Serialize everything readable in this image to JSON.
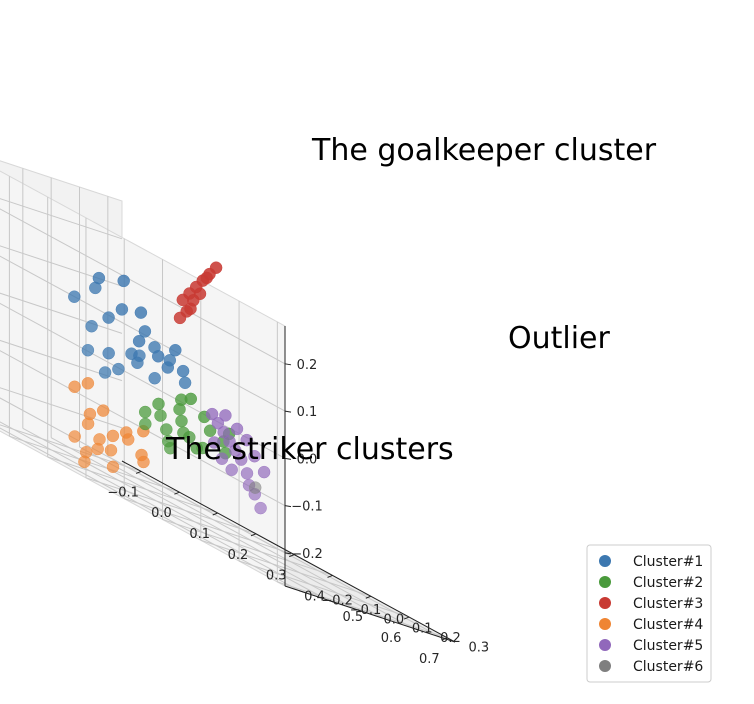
{
  "chart_data": {
    "type": "scatter",
    "projection": "3d",
    "title": "",
    "xlabel": "",
    "ylabel": "",
    "zlabel": "",
    "grid": true,
    "xlim": [
      -0.15,
      0.72
    ],
    "ylim": [
      -0.25,
      0.35
    ],
    "zlim": [
      -0.27,
      0.28
    ],
    "x_ticks": [
      "−0.1",
      "0.0",
      "0.1",
      "0.2",
      "0.3",
      "0.4",
      "0.5",
      "0.6",
      "0.7"
    ],
    "y_ticks": [
      "−0.2",
      "−0.1",
      "0.0",
      "0.1",
      "0.2",
      "0.3"
    ],
    "z_ticks": [
      "−0.2",
      "−0.1",
      "0.0",
      "0.1",
      "0.2"
    ],
    "legend_position": "bottom-right",
    "annotations": [
      "The goalkeeper cluster",
      "Outlier",
      "The striker clusters"
    ],
    "series": [
      {
        "name": "Cluster#1",
        "color": "#3d78b0",
        "points": [
          [
            0.0,
            0.1,
            0.05
          ],
          [
            0.02,
            0.12,
            0.08
          ],
          [
            0.05,
            0.14,
            0.03
          ],
          [
            -0.02,
            0.08,
            0.1
          ],
          [
            0.08,
            0.12,
            0.06
          ],
          [
            0.1,
            0.14,
            0.02
          ],
          [
            0.06,
            0.1,
            0.0
          ],
          [
            0.12,
            0.1,
            0.04
          ],
          [
            0.03,
            0.06,
            -0.02
          ],
          [
            0.0,
            0.04,
            0.02
          ],
          [
            0.14,
            0.12,
            0.01
          ],
          [
            0.16,
            0.1,
            0.03
          ],
          [
            0.09,
            0.08,
            -0.01
          ],
          [
            0.11,
            0.06,
            0.01
          ],
          [
            -0.04,
            0.12,
            0.12
          ],
          [
            0.04,
            0.16,
            0.09
          ],
          [
            0.13,
            0.16,
            0.05
          ],
          [
            0.07,
            0.04,
            -0.04
          ],
          [
            0.02,
            0.0,
            -0.03
          ],
          [
            0.18,
            0.12,
            0.02
          ],
          [
            0.15,
            0.06,
            -0.02
          ],
          [
            -0.06,
            0.06,
            0.06
          ],
          [
            0.05,
            0.02,
            -0.06
          ],
          [
            0.2,
            0.1,
            0.0
          ],
          [
            0.01,
            0.14,
            0.14
          ]
        ]
      },
      {
        "name": "Cluster#2",
        "color": "#4a9a3c",
        "points": [
          [
            0.2,
            0.08,
            -0.06
          ],
          [
            0.22,
            0.06,
            -0.08
          ],
          [
            0.25,
            0.1,
            -0.05
          ],
          [
            0.18,
            0.04,
            -0.09
          ],
          [
            0.24,
            0.04,
            -0.1
          ],
          [
            0.28,
            0.08,
            -0.07
          ],
          [
            0.21,
            0.02,
            -0.11
          ],
          [
            0.26,
            0.06,
            -0.12
          ],
          [
            0.3,
            0.1,
            -0.08
          ],
          [
            0.19,
            0.1,
            -0.04
          ],
          [
            0.23,
            0.0,
            -0.13
          ],
          [
            0.27,
            0.02,
            -0.1
          ],
          [
            0.16,
            0.06,
            -0.07
          ],
          [
            0.29,
            0.04,
            -0.11
          ],
          [
            0.17,
            0.0,
            -0.12
          ],
          [
            0.32,
            0.08,
            -0.1
          ],
          [
            0.2,
            0.12,
            -0.03
          ],
          [
            0.25,
            -0.02,
            -0.14
          ],
          [
            0.14,
            0.04,
            -0.1
          ],
          [
            0.3,
            0.12,
            -0.06
          ]
        ]
      },
      {
        "name": "Cluster#3",
        "color": "#c83a33",
        "points": [
          [
            0.12,
            0.2,
            0.16
          ],
          [
            0.13,
            0.21,
            0.18
          ],
          [
            0.14,
            0.22,
            0.2
          ],
          [
            0.15,
            0.23,
            0.22
          ],
          [
            0.16,
            0.24,
            0.24
          ],
          [
            0.13,
            0.2,
            0.14
          ],
          [
            0.14,
            0.21,
            0.17
          ],
          [
            0.15,
            0.22,
            0.19
          ],
          [
            0.17,
            0.25,
            0.26
          ],
          [
            0.12,
            0.19,
            0.12
          ],
          [
            0.16,
            0.23,
            0.23
          ],
          [
            0.14,
            0.2,
            0.15
          ]
        ]
      },
      {
        "name": "Cluster#4",
        "color": "#ef8533",
        "points": [
          [
            0.0,
            -0.02,
            -0.12
          ],
          [
            0.04,
            -0.02,
            -0.16
          ],
          [
            0.06,
            0.0,
            -0.14
          ],
          [
            0.08,
            -0.04,
            -0.2
          ],
          [
            0.1,
            -0.02,
            -0.18
          ],
          [
            0.12,
            0.0,
            -0.16
          ],
          [
            0.06,
            -0.06,
            -0.24
          ],
          [
            0.09,
            -0.06,
            -0.22
          ],
          [
            0.14,
            -0.02,
            -0.17
          ],
          [
            0.02,
            0.0,
            -0.1
          ],
          [
            0.07,
            -0.08,
            -0.26
          ],
          [
            0.11,
            -0.04,
            -0.21
          ],
          [
            0.16,
            0.0,
            -0.19
          ],
          [
            0.05,
            -0.04,
            -0.18
          ],
          [
            0.13,
            -0.06,
            -0.24
          ],
          [
            0.18,
            -0.02,
            -0.2
          ],
          [
            0.03,
            -0.06,
            -0.22
          ],
          [
            0.15,
            0.02,
            -0.14
          ]
        ]
      },
      {
        "name": "Cluster#5",
        "color": "#9168bb",
        "points": [
          [
            0.3,
            0.06,
            -0.03
          ],
          [
            0.33,
            0.04,
            -0.04
          ],
          [
            0.36,
            0.02,
            -0.05
          ],
          [
            0.39,
            0.0,
            -0.06
          ],
          [
            0.42,
            -0.02,
            -0.07
          ],
          [
            0.45,
            -0.04,
            -0.08
          ],
          [
            0.48,
            -0.06,
            -0.1
          ],
          [
            0.5,
            -0.08,
            -0.12
          ],
          [
            0.53,
            -0.1,
            -0.13
          ],
          [
            0.56,
            -0.12,
            -0.15
          ],
          [
            0.35,
            0.0,
            -0.08
          ],
          [
            0.4,
            -0.04,
            -0.1
          ],
          [
            0.44,
            -0.06,
            -0.11
          ],
          [
            0.38,
            0.04,
            -0.03
          ],
          [
            0.47,
            -0.02,
            -0.06
          ],
          [
            0.51,
            -0.04,
            -0.08
          ],
          [
            0.32,
            0.08,
            -0.02
          ],
          [
            0.42,
            0.02,
            -0.04
          ]
        ]
      },
      {
        "name": "Cluster#6",
        "color": "#7f7f7f",
        "points": [
          [
            0.62,
            -0.22,
            -0.1
          ]
        ]
      }
    ]
  }
}
